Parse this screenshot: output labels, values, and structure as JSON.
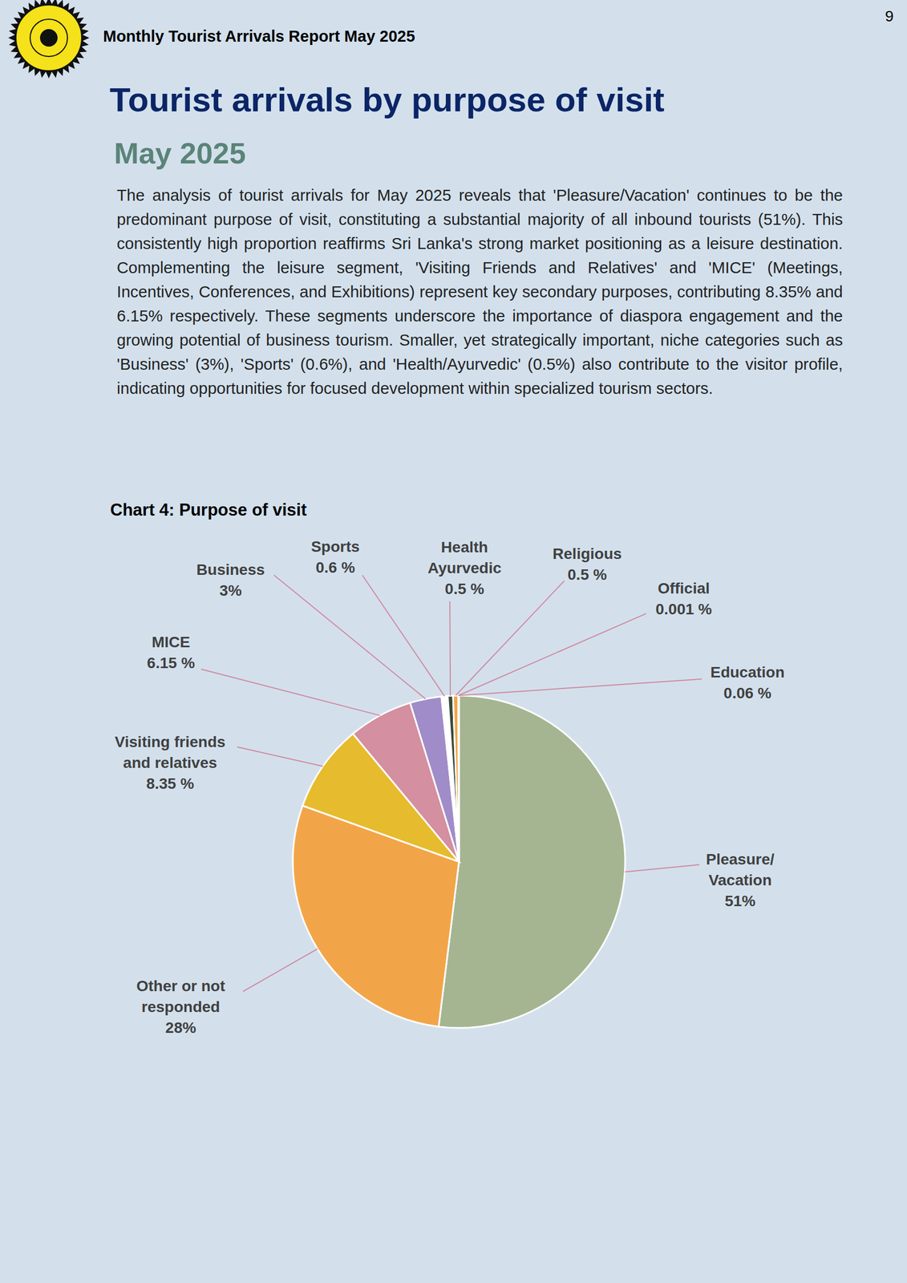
{
  "header": {
    "title": "Monthly Tourist Arrivals Report May 2025",
    "page_number": 9
  },
  "title": "Tourist arrivals by purpose of visit",
  "subtitle": "May 2025",
  "body": "The analysis of tourist arrivals for May 2025 reveals that 'Pleasure/Vacation' continues to be the predominant purpose of visit, constituting a substantial majority of all inbound tourists (51%). This consistently high proportion reaffirms Sri Lanka's strong market positioning as a leisure destination. Complementing the leisure segment, 'Visiting Friends and Relatives' and 'MICE' (Meetings, Incentives, Conferences, and Exhibitions) represent key secondary purposes, contributing 8.35% and 6.15% respectively. These segments underscore the importance of diaspora engagement and the growing potential of business tourism. Smaller, yet strategically important, niche categories such as 'Business' (3%), 'Sports' (0.6%), and 'Health/Ayurvedic' (0.5%) also contribute to the visitor profile, indicating opportunities for focused development within specialized tourism sectors.",
  "chart_data": {
    "type": "pie",
    "title": "Chart 4: Purpose of visit",
    "categories": [
      "Pleasure/\nVacation",
      "Other or not\nresponded",
      "Visiting friends\nand relatives",
      "MICE",
      "Business",
      "Sports",
      "Health\nAyurvedic",
      "Religious",
      "Official",
      "Education"
    ],
    "values": [
      51,
      28,
      8.35,
      6.15,
      3,
      0.6,
      0.5,
      0.5,
      0.001,
      0.06
    ],
    "value_labels": [
      "51%",
      "28%",
      "8.35 %",
      "6.15 %",
      "3%",
      "0.6 %",
      "0.5 %",
      "0.5 %",
      "0.001 %",
      "0.06 %"
    ],
    "colors": [
      "#a5b592",
      "#f2a548",
      "#e6bb2e",
      "#d48fa0",
      "#a08cc8",
      "#ffffff",
      "#3b4a3b",
      "#f2a548",
      "#6b6b6b",
      "#8b5a2b"
    ],
    "data_labels": true
  }
}
